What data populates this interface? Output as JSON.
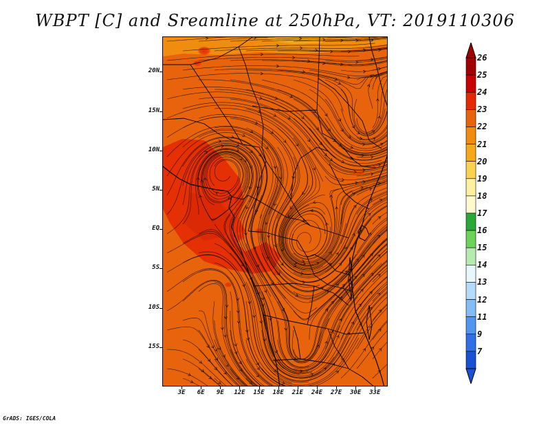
{
  "title": "WBPT [C] and Sreamline at 250hPa, VT: 2019110306",
  "credit": "GrADS: IGES/COLA",
  "map": {
    "lat_labels": [
      "20N",
      "15N",
      "10N",
      "5N",
      "EQ",
      "5S",
      "10S",
      "15S"
    ],
    "lat_values": [
      20,
      15,
      10,
      5,
      0,
      -5,
      -10,
      -15
    ],
    "lon_labels": [
      "3E",
      "6E",
      "9E",
      "12E",
      "15E",
      "18E",
      "21E",
      "24E",
      "27E",
      "30E",
      "33E"
    ],
    "lon_values": [
      3,
      6,
      9,
      12,
      15,
      18,
      21,
      24,
      27,
      30,
      33
    ],
    "lat_range": [
      -20,
      24.5
    ],
    "lon_range": [
      0,
      35
    ],
    "field": "wet-bulb potential temperature",
    "overlay": "streamlines",
    "level": "250hPa",
    "valid_time": "2019110306",
    "dominant_band": "22-23",
    "warm_band_region": "central west (Gulf of Guinea / Congo Basin)",
    "cool_band_region": "northern strip near 24N"
  },
  "colorbar": {
    "labels": [
      "26",
      "25",
      "24",
      "23",
      "22",
      "21",
      "20",
      "19",
      "18",
      "17",
      "16",
      "15",
      "14",
      "13",
      "12",
      "11",
      "9",
      "7"
    ],
    "colors": [
      "#a00000",
      "#c80000",
      "#e42a05",
      "#e8640c",
      "#f08c10",
      "#f5a81a",
      "#fad250",
      "#fdf0a0",
      "#fffacd",
      "#2aa838",
      "#6cd25a",
      "#b6eab0",
      "#e6f8fb",
      "#b4dcfa",
      "#82bef5",
      "#5096ee",
      "#3070e4",
      "#1a50d4"
    ],
    "top_arrow_color": "#a00000",
    "bottom_arrow_color": "#1a50d4"
  }
}
